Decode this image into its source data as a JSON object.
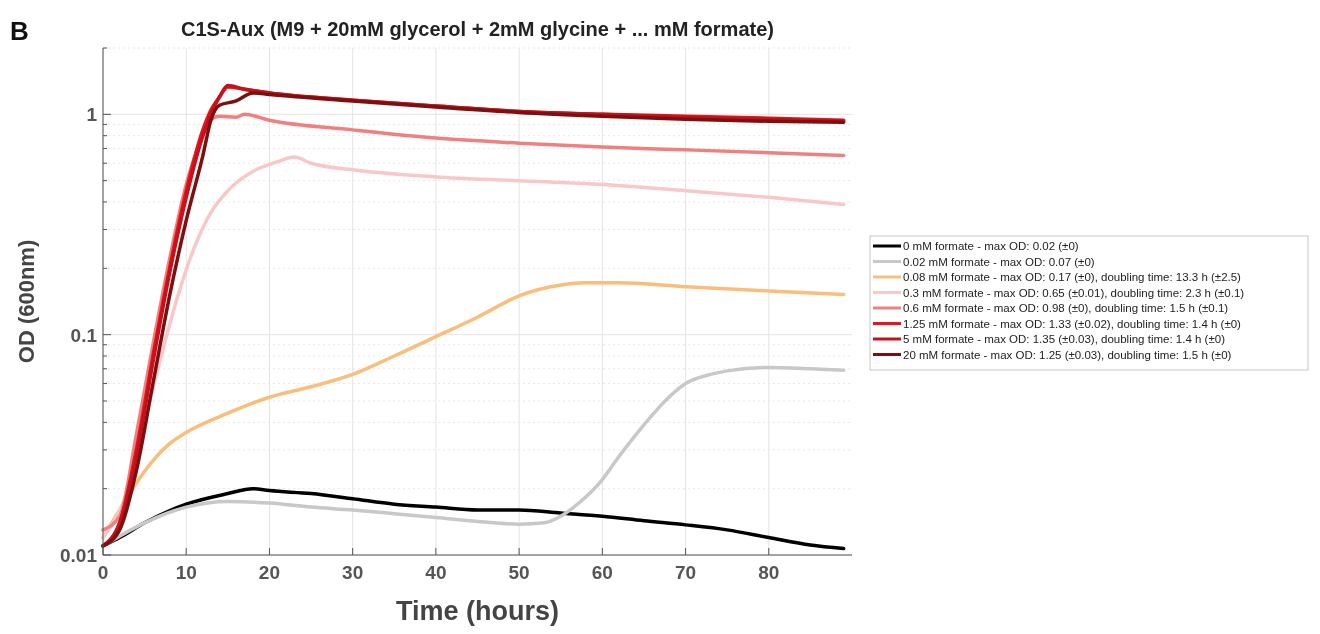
{
  "chart_data": {
    "type": "line",
    "title": "C1S-Aux (M9 + 20mM glycerol + 2mM glycine + ... mM formate)",
    "xlabel": "Time (hours)",
    "ylabel": "OD (600nm)",
    "annotations": [
      "B"
    ],
    "log": "y",
    "grid": true,
    "legend": "right",
    "xlim": [
      0,
      90
    ],
    "xticks": [
      0,
      10,
      20,
      30,
      40,
      50,
      60,
      70,
      80
    ],
    "ylim": [
      0.01,
      2
    ],
    "yticks": [
      0.01,
      {
        "value": 0.02,
        "label": null
      },
      {
        "value": 0.03,
        "label": null
      },
      {
        "value": 0.04,
        "label": null
      },
      {
        "value": 0.05,
        "label": null
      },
      {
        "value": 0.06,
        "label": null
      },
      {
        "value": 0.07,
        "label": null
      },
      {
        "value": 0.08,
        "label": null
      },
      {
        "value": 0.09,
        "label": null
      },
      0.1,
      {
        "value": 0.2,
        "label": null
      },
      {
        "value": 0.3,
        "label": null
      },
      {
        "value": 0.4,
        "label": null
      },
      {
        "value": 0.5,
        "label": null
      },
      {
        "value": 0.6,
        "label": null
      },
      {
        "value": 0.7,
        "label": null
      },
      {
        "value": 0.8,
        "label": null
      },
      {
        "value": 0.9,
        "label": null
      },
      1,
      {
        "value": 2,
        "label": null
      }
    ],
    "series": [
      {
        "name": "0 mM formate - max OD: 0.02 (±0)",
        "color": "#000000",
        "x": [
          0,
          2,
          5,
          10,
          15,
          18,
          20,
          25,
          30,
          35,
          40,
          45,
          50,
          55,
          60,
          65,
          70,
          75,
          80,
          85,
          89
        ],
        "values": [
          0.011,
          0.012,
          0.014,
          0.017,
          0.019,
          0.02,
          0.0196,
          0.019,
          0.018,
          0.017,
          0.0165,
          0.016,
          0.016,
          0.0155,
          0.015,
          0.0143,
          0.0137,
          0.013,
          0.012,
          0.0111,
          0.0107
        ]
      },
      {
        "name": "0.02 mM formate - max OD: 0.07 (±0)",
        "color": "#c8c8c8",
        "x": [
          0,
          5,
          10,
          15,
          20,
          25,
          30,
          35,
          40,
          45,
          50,
          53,
          55,
          57,
          60,
          62,
          65,
          68,
          70,
          73,
          75,
          80,
          85,
          89
        ],
        "values": [
          0.011,
          0.014,
          0.0165,
          0.0175,
          0.0172,
          0.0165,
          0.016,
          0.0154,
          0.0148,
          0.0142,
          0.0138,
          0.014,
          0.015,
          0.017,
          0.022,
          0.028,
          0.039,
          0.052,
          0.06,
          0.066,
          0.0685,
          0.071,
          0.07,
          0.069
        ]
      },
      {
        "name": "0.08 mM formate - max OD: 0.17 (±0), doubling time: 13.3 h (±2.5)",
        "color": "#f9be7c",
        "x": [
          0,
          2,
          5,
          8,
          10,
          15,
          20,
          25,
          30,
          35,
          40,
          45,
          50,
          55,
          58,
          62,
          70,
          80,
          89
        ],
        "values": [
          0.012,
          0.016,
          0.024,
          0.032,
          0.036,
          0.044,
          0.052,
          0.058,
          0.066,
          0.08,
          0.098,
          0.12,
          0.15,
          0.168,
          0.172,
          0.172,
          0.165,
          0.158,
          0.152
        ]
      },
      {
        "name": "0.3 mM formate - max OD: 0.65 (±0.01), doubling time: 2.3 h (±0.1)",
        "color": "#f8c8c8",
        "x": [
          0,
          3,
          5,
          7,
          9,
          11,
          13,
          15,
          18,
          21,
          23,
          25,
          30,
          40,
          50,
          60,
          70,
          80,
          89
        ],
        "values": [
          0.012,
          0.02,
          0.04,
          0.08,
          0.15,
          0.25,
          0.36,
          0.45,
          0.55,
          0.61,
          0.64,
          0.6,
          0.56,
          0.52,
          0.5,
          0.48,
          0.45,
          0.42,
          0.39
        ]
      },
      {
        "name": "0.6 mM formate - max OD: 0.98 (±0), doubling time: 1.5 h (±0.1)",
        "color": "#f08080",
        "x": [
          0,
          2,
          4,
          6,
          8,
          10,
          12,
          13,
          14,
          16,
          17,
          20,
          30,
          40,
          50,
          60,
          70,
          80,
          89
        ],
        "values": [
          0.013,
          0.015,
          0.035,
          0.09,
          0.22,
          0.48,
          0.8,
          0.95,
          0.98,
          0.97,
          1,
          0.94,
          0.85,
          0.78,
          0.74,
          0.71,
          0.69,
          0.67,
          0.65
        ]
      },
      {
        "name": "1.25 mM formate - max OD: 1.33 (±0.02), doubling time: 1.4 h (±0)",
        "color": "#e8161b",
        "x": [
          0,
          2,
          4,
          6,
          8,
          10,
          12,
          13,
          14,
          15,
          17,
          20,
          30,
          40,
          50,
          60,
          70,
          80,
          89
        ],
        "values": [
          0.011,
          0.014,
          0.03,
          0.08,
          0.2,
          0.45,
          0.85,
          1.05,
          1.2,
          1.33,
          1.3,
          1.25,
          1.16,
          1.09,
          1.03,
          1,
          0.98,
          0.96,
          0.94
        ]
      },
      {
        "name": "5 mM formate - max OD: 1.35 (±0.03), doubling time: 1.4 h (±0)",
        "color": "#c8101a",
        "x": [
          0,
          2,
          4,
          6,
          8,
          10,
          12,
          14,
          15,
          17,
          20,
          30,
          40,
          50,
          60,
          70,
          80,
          89
        ],
        "values": [
          0.011,
          0.014,
          0.028,
          0.075,
          0.19,
          0.42,
          0.8,
          1.2,
          1.35,
          1.3,
          1.25,
          1.16,
          1.09,
          1.03,
          1,
          0.97,
          0.95,
          0.93
        ]
      },
      {
        "name": "20 mM formate - max OD: 1.25 (±0.03), doubling time: 1.5 h (±0)",
        "color": "#7a1010",
        "x": [
          0,
          2,
          4,
          6,
          8,
          10,
          12,
          13,
          14,
          16,
          18,
          20,
          30,
          40,
          50,
          60,
          70,
          80,
          89
        ],
        "values": [
          0.011,
          0.013,
          0.024,
          0.06,
          0.15,
          0.33,
          0.65,
          0.95,
          1.1,
          1.15,
          1.25,
          1.23,
          1.15,
          1.08,
          1.02,
          0.98,
          0.95,
          0.93,
          0.92
        ]
      }
    ]
  }
}
